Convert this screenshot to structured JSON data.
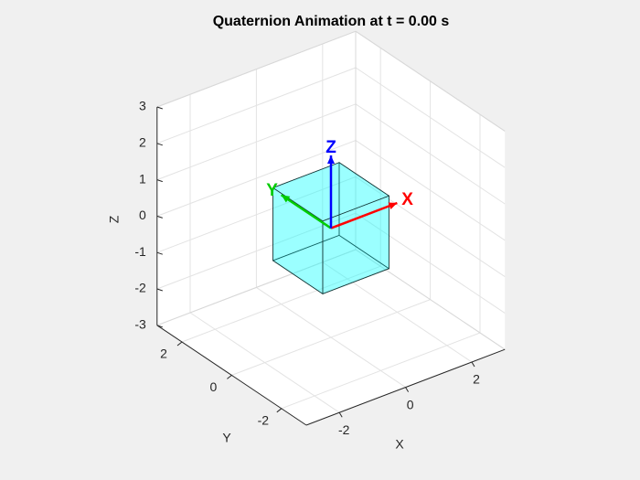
{
  "chart_data": {
    "type": "cube3d",
    "title": "Quaternion Animation at t = 0.00 s",
    "xlabel": "X",
    "ylabel": "Y",
    "zlabel": "Z",
    "xlim": [
      -3,
      3
    ],
    "ylim": [
      -3,
      3
    ],
    "zlim": [
      -3,
      3
    ],
    "xticks": [
      -2,
      0,
      2
    ],
    "yticks": [
      -2,
      0,
      2
    ],
    "zticks": [
      -3,
      -2,
      -1,
      0,
      1,
      2,
      3
    ],
    "grid": true,
    "cube": {
      "size": 2,
      "color": "#00ffff"
    },
    "vectors": [
      {
        "name": "X",
        "color": "#ff0000",
        "values": [
          2,
          0,
          0
        ]
      },
      {
        "name": "Y",
        "color": "#00cc00",
        "values": [
          0,
          2,
          0
        ]
      },
      {
        "name": "Z",
        "color": "#0000ff",
        "values": [
          0,
          0,
          2
        ]
      }
    ]
  }
}
